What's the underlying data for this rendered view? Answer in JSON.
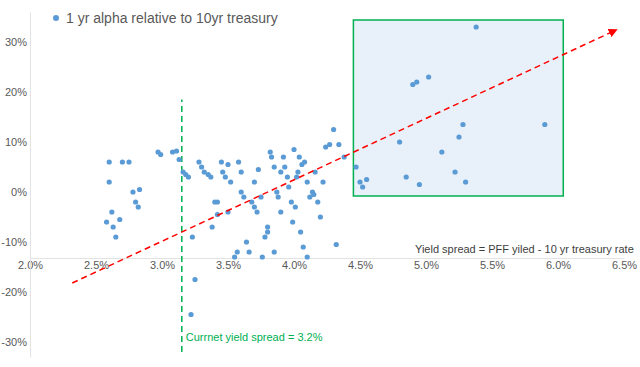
{
  "chart_data": {
    "type": "scatter",
    "legend": "upper left",
    "grid": false,
    "xlim": [
      2.0,
      6.5
    ],
    "xticks": [
      {
        "value": 2.0,
        "label": "2.0%"
      },
      {
        "value": 2.5,
        "label": "2.5%"
      },
      {
        "value": 3.0,
        "label": "3.0%"
      },
      {
        "value": 3.5,
        "label": "3.5%"
      },
      {
        "value": 4.0,
        "label": "4.0%"
      },
      {
        "value": 4.5,
        "label": "4.5%"
      },
      {
        "value": 5.0,
        "label": "5.0%"
      },
      {
        "value": 5.5,
        "label": "5.5%"
      },
      {
        "value": 6.0,
        "label": "6.0%"
      },
      {
        "value": 6.5,
        "label": "6.5%"
      }
    ],
    "ylim": [
      -33,
      36
    ],
    "yticks": [
      {
        "value": -30,
        "label": "-30%"
      },
      {
        "value": -20,
        "label": "-20%"
      },
      {
        "value": -10,
        "label": "-10%"
      },
      {
        "value": 0,
        "label": "0%"
      },
      {
        "value": 10,
        "label": "10%"
      },
      {
        "value": 20,
        "label": "20%"
      },
      {
        "value": 30,
        "label": "30%"
      }
    ],
    "x": [
      2.6,
      2.6,
      2.58,
      2.62,
      2.63,
      2.65,
      2.68,
      2.7,
      2.75,
      2.78,
      2.8,
      2.82,
      2.83,
      2.97,
      2.99,
      3.08,
      3.11,
      3.13,
      3.16,
      3.2,
      3.18,
      3.23,
      3.25,
      3.22,
      3.28,
      3.3,
      3.32,
      3.35,
      3.37,
      3.4,
      3.42,
      3.38,
      3.42,
      3.45,
      3.46,
      3.48,
      3.5,
      3.5,
      3.52,
      3.55,
      3.57,
      3.58,
      3.6,
      3.62,
      3.6,
      3.64,
      3.66,
      3.68,
      3.7,
      3.72,
      3.7,
      3.73,
      3.75,
      3.76,
      3.78,
      3.8,
      3.8,
      3.82,
      3.83,
      3.85,
      3.85,
      3.87,
      3.88,
      3.9,
      3.9,
      3.92,
      3.93,
      3.95,
      3.96,
      3.98,
      3.99,
      4.0,
      4.01,
      4.02,
      4.03,
      4.04,
      4.05,
      4.06,
      4.07,
      4.08,
      4.1,
      4.1,
      4.12,
      4.14,
      4.15,
      4.16,
      4.18,
      4.2,
      4.22,
      4.24,
      4.27,
      4.3,
      4.32,
      4.34,
      4.38,
      4.47,
      4.5,
      4.52,
      4.55,
      4.8,
      4.85,
      4.9,
      4.93,
      4.95,
      5.02,
      5.12,
      5.22,
      5.25,
      5.28,
      5.3,
      5.38,
      5.9
    ],
    "series": [
      {
        "name": "1 yr alpha relative to 10yr treasury",
        "color": "#5b9bd5",
        "marker": "circle",
        "values": [
          6,
          2,
          -6,
          -4,
          -7,
          -9,
          -5.5,
          6,
          6,
          0,
          -2,
          -3,
          0.5,
          8,
          7.5,
          8,
          8.2,
          6.5,
          4,
          3,
          3.5,
          -9,
          -17.5,
          -24.5,
          6,
          5,
          4,
          3.5,
          3,
          -2,
          -2,
          -7,
          -4.5,
          6,
          4,
          3,
          -4,
          5.5,
          2,
          -13,
          -12,
          6,
          0,
          -1,
          4,
          -10,
          -12,
          -2,
          -3,
          -4,
          2,
          4.5,
          -1,
          -13,
          -9,
          -7,
          -8,
          8,
          7,
          5,
          -12,
          0,
          -1,
          -4,
          4,
          7,
          5,
          3,
          1,
          -2,
          -6,
          8.5,
          -3,
          3,
          4,
          7,
          -8,
          5.5,
          -11,
          6,
          -13,
          2,
          -1,
          0,
          -0.5,
          4,
          -2,
          -5,
          2,
          9,
          9.5,
          12.5,
          -10.5,
          9.5,
          7,
          5,
          2,
          1,
          2.5,
          10,
          3,
          21.5,
          22,
          1.5,
          23,
          8,
          4,
          11,
          13.5,
          2,
          33,
          13.5
        ]
      }
    ],
    "trend_line": {
      "x": [
        2.32,
        6.44
      ],
      "y": [
        -18.2,
        32.4
      ],
      "color": "#ff0000",
      "line_style": "dashed"
    },
    "current_spread_line": {
      "x": 3.15,
      "y": [
        -32,
        18.5
      ],
      "color": "#00b050",
      "line_style": "dashed",
      "label": "Currnet yield spread = 3.2%"
    },
    "highlight_box": {
      "x": [
        4.45,
        6.04
      ],
      "y": [
        -0.8,
        34.4
      ],
      "color": "#00b050"
    },
    "annotations": [
      {
        "text": "Yield spread = PFF yiled - 10 yr treasury rate"
      }
    ]
  }
}
